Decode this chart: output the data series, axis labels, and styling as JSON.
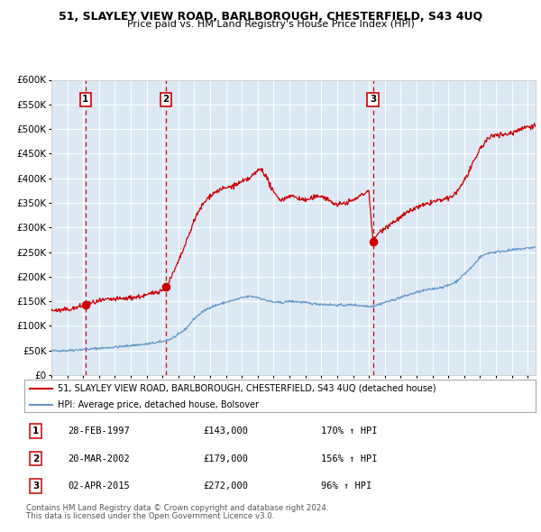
{
  "title1": "51, SLAYLEY VIEW ROAD, BARLBOROUGH, CHESTERFIELD, S43 4UQ",
  "title2": "Price paid vs. HM Land Registry's House Price Index (HPI)",
  "red_line_label": "51, SLAYLEY VIEW ROAD, BARLBOROUGH, CHESTERFIELD, S43 4UQ (detached house)",
  "blue_line_label": "HPI: Average price, detached house, Bolsover",
  "transactions": [
    {
      "num": 1,
      "date": "28-FEB-1997",
      "price": 143000,
      "hpi_pct": "170%",
      "year": 1997.15
    },
    {
      "num": 2,
      "date": "20-MAR-2002",
      "price": 179000,
      "hpi_pct": "156%",
      "year": 2002.21
    },
    {
      "num": 3,
      "date": "02-APR-2015",
      "price": 272000,
      "hpi_pct": "96%",
      "year": 2015.25
    }
  ],
  "footnote1": "Contains HM Land Registry data © Crown copyright and database right 2024.",
  "footnote2": "This data is licensed under the Open Government Licence v3.0.",
  "ylim": [
    0,
    600000
  ],
  "yticks": [
    0,
    50000,
    100000,
    150000,
    200000,
    250000,
    300000,
    350000,
    400000,
    450000,
    500000,
    550000,
    600000
  ],
  "xlim_start": 1995.0,
  "xlim_end": 2025.5,
  "bg_color": "#dce9f5",
  "grid_color": "#ffffff",
  "red_color": "#cc0000",
  "blue_color": "#6699cc",
  "box_color": "#cc0000",
  "hpi_blue_keypoints": [
    [
      1995.0,
      49000
    ],
    [
      1995.5,
      49500
    ],
    [
      1996.0,
      50000
    ],
    [
      1996.5,
      51000
    ],
    [
      1997.0,
      52000
    ],
    [
      1997.5,
      53000
    ],
    [
      1998.0,
      54500
    ],
    [
      1998.5,
      55500
    ],
    [
      1999.0,
      57000
    ],
    [
      1999.5,
      58000
    ],
    [
      2000.0,
      60000
    ],
    [
      2000.5,
      61500
    ],
    [
      2001.0,
      63000
    ],
    [
      2001.5,
      65500
    ],
    [
      2002.0,
      68000
    ],
    [
      2002.5,
      73000
    ],
    [
      2003.0,
      82000
    ],
    [
      2003.5,
      95000
    ],
    [
      2004.0,
      115000
    ],
    [
      2004.5,
      128000
    ],
    [
      2005.0,
      138000
    ],
    [
      2005.5,
      143000
    ],
    [
      2006.0,
      148000
    ],
    [
      2006.5,
      152000
    ],
    [
      2007.0,
      157000
    ],
    [
      2007.5,
      160000
    ],
    [
      2008.0,
      158000
    ],
    [
      2008.5,
      152000
    ],
    [
      2009.0,
      148000
    ],
    [
      2009.5,
      147000
    ],
    [
      2010.0,
      150000
    ],
    [
      2010.5,
      149000
    ],
    [
      2011.0,
      147000
    ],
    [
      2011.5,
      145000
    ],
    [
      2012.0,
      144000
    ],
    [
      2012.5,
      143000
    ],
    [
      2013.0,
      142000
    ],
    [
      2013.5,
      142000
    ],
    [
      2014.0,
      143000
    ],
    [
      2014.5,
      141000
    ],
    [
      2015.0,
      140000
    ],
    [
      2015.25,
      140000
    ],
    [
      2015.5,
      142000
    ],
    [
      2016.0,
      148000
    ],
    [
      2016.5,
      152000
    ],
    [
      2017.0,
      158000
    ],
    [
      2017.5,
      163000
    ],
    [
      2018.0,
      168000
    ],
    [
      2018.5,
      172000
    ],
    [
      2019.0,
      175000
    ],
    [
      2019.5,
      178000
    ],
    [
      2020.0,
      182000
    ],
    [
      2020.5,
      190000
    ],
    [
      2021.0,
      205000
    ],
    [
      2021.5,
      220000
    ],
    [
      2022.0,
      240000
    ],
    [
      2022.5,
      248000
    ],
    [
      2023.0,
      250000
    ],
    [
      2023.5,
      252000
    ],
    [
      2024.0,
      254000
    ],
    [
      2024.5,
      256000
    ],
    [
      2025.0,
      258000
    ],
    [
      2025.5,
      260000
    ]
  ],
  "red_keypoints": [
    [
      1995.0,
      132000
    ],
    [
      1995.5,
      131000
    ],
    [
      1996.0,
      133000
    ],
    [
      1996.5,
      136000
    ],
    [
      1997.15,
      143000
    ],
    [
      1997.5,
      146000
    ],
    [
      1998.0,
      150000
    ],
    [
      1998.5,
      153000
    ],
    [
      1999.0,
      154000
    ],
    [
      1999.5,
      155000
    ],
    [
      2000.0,
      157000
    ],
    [
      2000.5,
      159000
    ],
    [
      2001.0,
      162000
    ],
    [
      2001.5,
      168000
    ],
    [
      2002.0,
      173000
    ],
    [
      2002.21,
      179000
    ],
    [
      2002.5,
      195000
    ],
    [
      2003.0,
      230000
    ],
    [
      2003.5,
      270000
    ],
    [
      2004.0,
      315000
    ],
    [
      2004.5,
      345000
    ],
    [
      2005.0,
      365000
    ],
    [
      2005.5,
      375000
    ],
    [
      2006.0,
      380000
    ],
    [
      2006.5,
      385000
    ],
    [
      2007.0,
      392000
    ],
    [
      2007.5,
      400000
    ],
    [
      2008.0,
      415000
    ],
    [
      2008.2,
      420000
    ],
    [
      2008.5,
      405000
    ],
    [
      2009.0,
      370000
    ],
    [
      2009.5,
      355000
    ],
    [
      2010.0,
      365000
    ],
    [
      2010.5,
      360000
    ],
    [
      2011.0,
      355000
    ],
    [
      2011.5,
      360000
    ],
    [
      2012.0,
      365000
    ],
    [
      2012.5,
      355000
    ],
    [
      2013.0,
      345000
    ],
    [
      2013.5,
      350000
    ],
    [
      2014.0,
      355000
    ],
    [
      2014.5,
      365000
    ],
    [
      2015.0,
      375000
    ],
    [
      2015.25,
      272000
    ],
    [
      2015.5,
      285000
    ],
    [
      2016.0,
      300000
    ],
    [
      2016.5,
      310000
    ],
    [
      2017.0,
      320000
    ],
    [
      2017.5,
      332000
    ],
    [
      2018.0,
      340000
    ],
    [
      2018.5,
      345000
    ],
    [
      2019.0,
      352000
    ],
    [
      2019.5,
      355000
    ],
    [
      2020.0,
      358000
    ],
    [
      2020.5,
      370000
    ],
    [
      2021.0,
      395000
    ],
    [
      2021.5,
      425000
    ],
    [
      2022.0,
      460000
    ],
    [
      2022.5,
      480000
    ],
    [
      2023.0,
      490000
    ],
    [
      2023.5,
      488000
    ],
    [
      2024.0,
      492000
    ],
    [
      2024.5,
      500000
    ],
    [
      2025.0,
      505000
    ],
    [
      2025.5,
      507000
    ]
  ],
  "sale_points": [
    [
      1997.15,
      143000
    ],
    [
      2002.21,
      179000
    ],
    [
      2015.25,
      272000
    ]
  ]
}
